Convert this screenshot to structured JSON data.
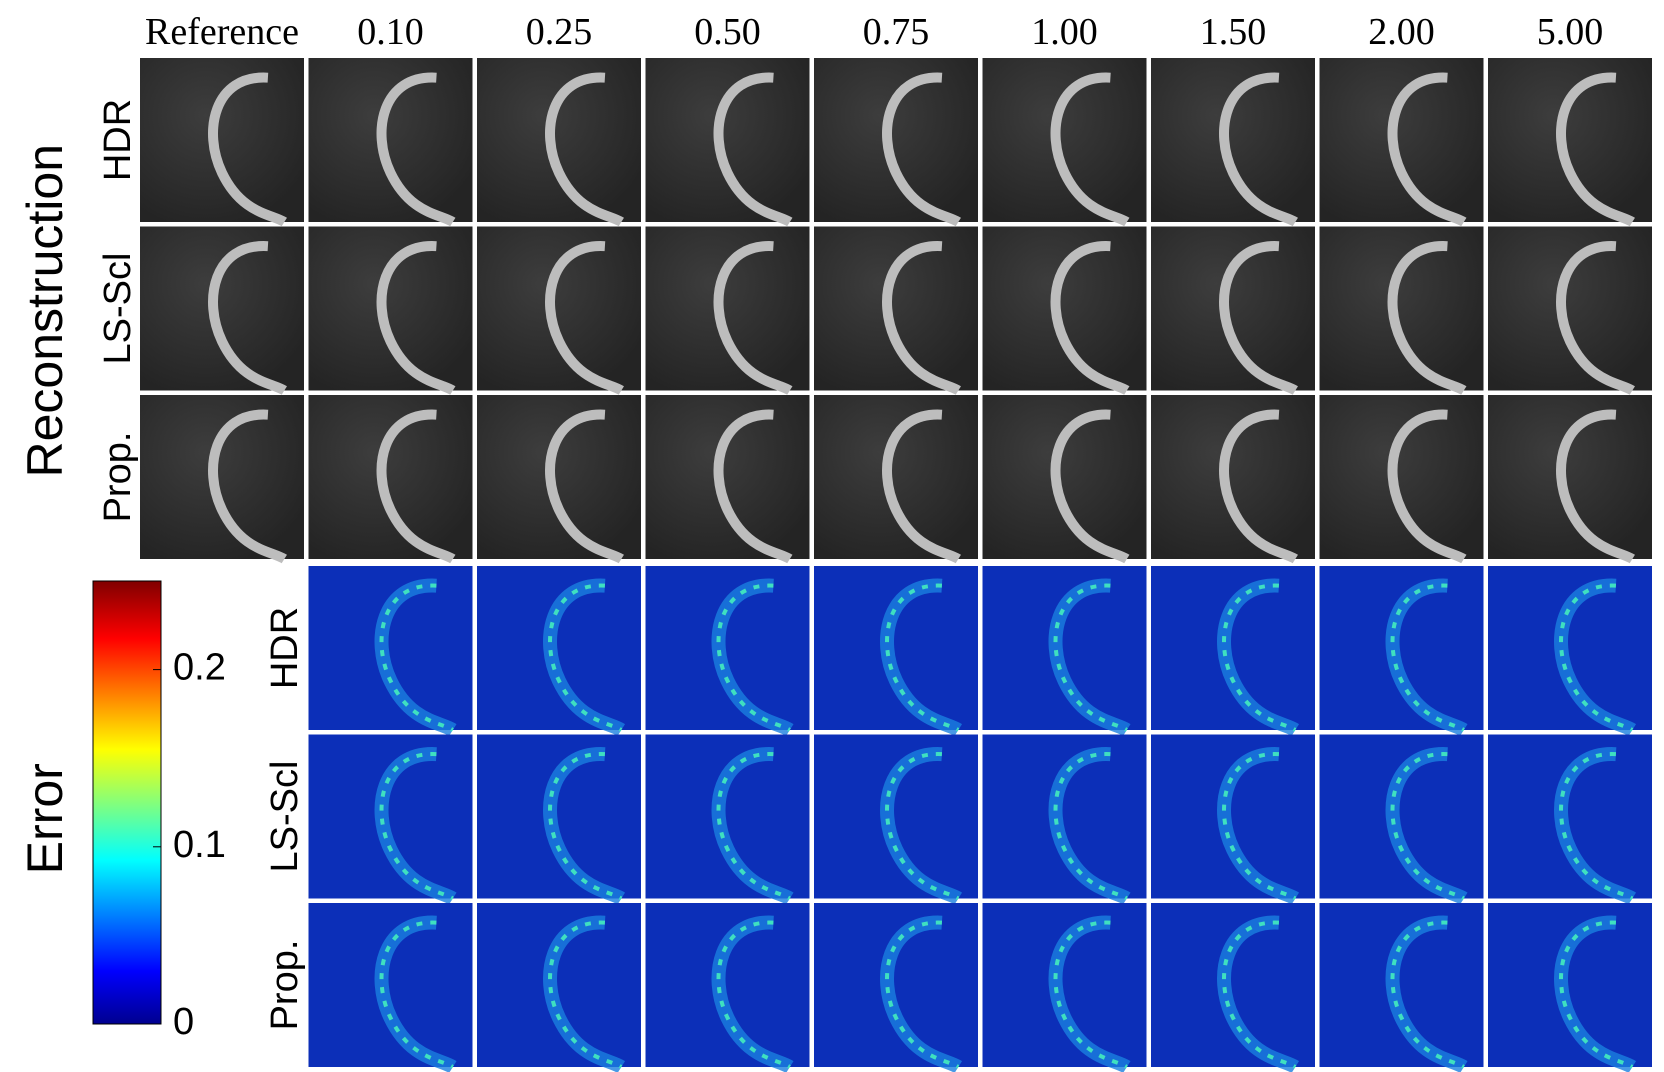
{
  "columns": [
    "Reference",
    "0.10",
    "0.25",
    "0.50",
    "0.75",
    "1.00",
    "1.50",
    "2.00",
    "5.00"
  ],
  "reconstruction": {
    "label": "Reconstruction",
    "rows": [
      "HDR",
      "LS-Scl",
      "Prop."
    ]
  },
  "error": {
    "label": "Error",
    "rows": [
      "HDR",
      "LS-Scl",
      "Prop."
    ]
  },
  "colorbar": {
    "range": [
      0,
      0.25
    ],
    "ticks": [
      0,
      0.1,
      0.2
    ]
  }
}
